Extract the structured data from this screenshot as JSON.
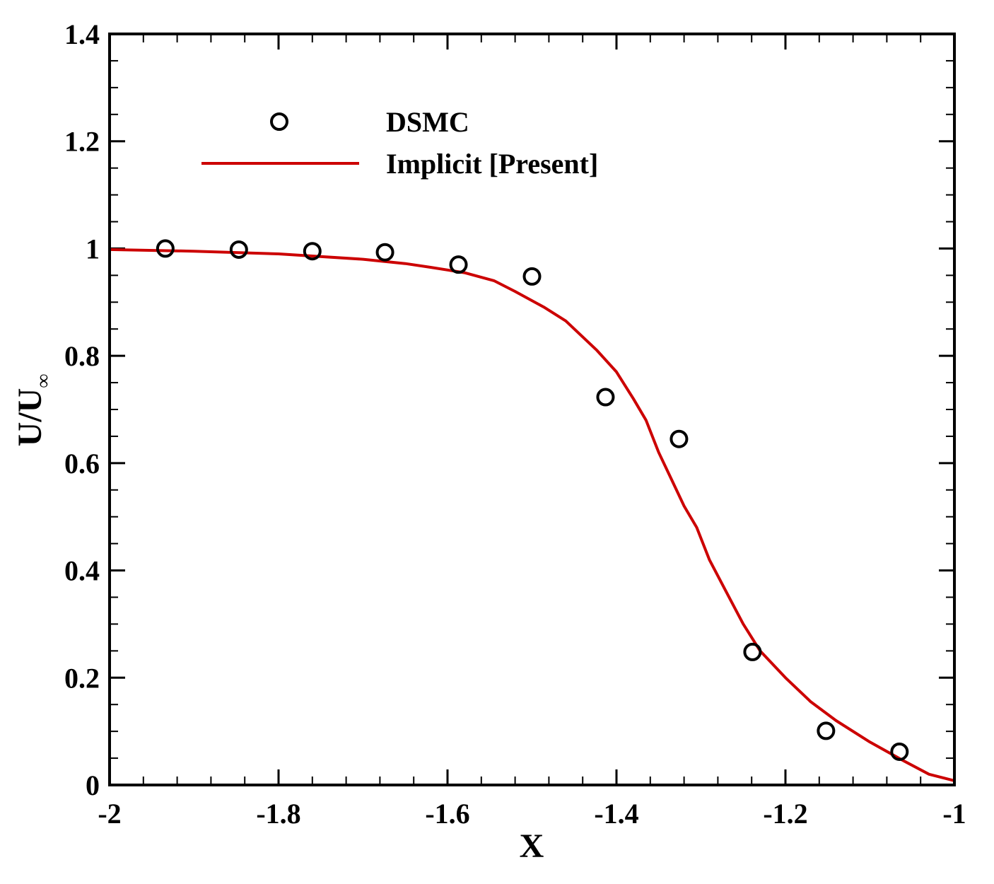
{
  "chart_data": {
    "type": "line",
    "title": "",
    "xlabel": "X",
    "ylabel": "U/U",
    "ylabel_subscript": "∞",
    "xlim": [
      -2,
      -1
    ],
    "ylim": [
      0,
      1.4
    ],
    "xticks": [
      -2,
      -1.8,
      -1.6,
      -1.4,
      -1.2,
      -1
    ],
    "xtick_labels": [
      "-2",
      "-1.8",
      "-1.6",
      "-1.4",
      "-1.2",
      "-1"
    ],
    "yticks": [
      0,
      0.2,
      0.4,
      0.6,
      0.8,
      1,
      1.2,
      1.4
    ],
    "ytick_labels": [
      "0",
      "0.2",
      "0.4",
      "0.6",
      "0.8",
      "1",
      "1.2",
      "1.4"
    ],
    "grid": false,
    "legend_position": "top-left",
    "series": [
      {
        "name": "DSMC",
        "style": "marker",
        "marker": "open-circle",
        "color": "#000000",
        "x": [
          -1.934,
          -1.847,
          -1.76,
          -1.674,
          -1.587,
          -1.5,
          -1.413,
          -1.326,
          -1.239,
          -1.152,
          -1.065
        ],
        "y": [
          1.0,
          0.998,
          0.995,
          0.993,
          0.97,
          0.948,
          0.723,
          0.645,
          0.248,
          0.101,
          0.062
        ]
      },
      {
        "name": "Implicit [Present]",
        "style": "line",
        "color": "#cc0000",
        "x": [
          -2.0,
          -1.9,
          -1.8,
          -1.7,
          -1.65,
          -1.62,
          -1.58,
          -1.545,
          -1.52,
          -1.485,
          -1.46,
          -1.423,
          -1.4,
          -1.38,
          -1.365,
          -1.35,
          -1.335,
          -1.32,
          -1.305,
          -1.29,
          -1.27,
          -1.25,
          -1.23,
          -1.2,
          -1.17,
          -1.14,
          -1.1,
          -1.06,
          -1.03,
          -1.0
        ],
        "y": [
          0.998,
          0.995,
          0.99,
          0.98,
          0.972,
          0.965,
          0.955,
          0.94,
          0.92,
          0.89,
          0.865,
          0.81,
          0.77,
          0.72,
          0.68,
          0.62,
          0.57,
          0.52,
          0.48,
          0.42,
          0.36,
          0.3,
          0.25,
          0.2,
          0.155,
          0.12,
          0.08,
          0.045,
          0.02,
          0.008
        ]
      }
    ]
  }
}
